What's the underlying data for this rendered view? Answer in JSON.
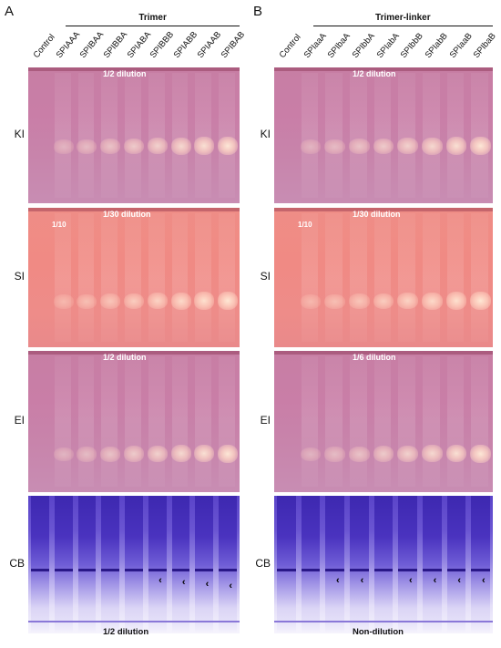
{
  "panels": [
    {
      "letter": "A",
      "group_title": "Trimer",
      "lanes": [
        "Control",
        "SPIAAA",
        "SPIBAA",
        "SPIBBA",
        "SPIABA",
        "SPIBBB",
        "SPIABB",
        "SPIAAB",
        "SPIBAB"
      ],
      "rows": [
        {
          "label": "KI",
          "dilution": "1/2 dilution",
          "note": ""
        },
        {
          "label": "SI",
          "dilution": "1/30 dilution",
          "note": "1/10"
        },
        {
          "label": "EI",
          "dilution": "1/2 dilution",
          "note": ""
        },
        {
          "label": "CB",
          "dilution": "1/2 dilution",
          "note": ""
        }
      ]
    },
    {
      "letter": "B",
      "group_title": "Trimer-linker",
      "lanes": [
        "Control",
        "SPIaaA",
        "SPIbaA",
        "SPIbbA",
        "SPIabA",
        "SPIbbB",
        "SPIabB",
        "SPIaaB",
        "SPIbaB"
      ],
      "rows": [
        {
          "label": "KI",
          "dilution": "1/2 dilution",
          "note": ""
        },
        {
          "label": "SI",
          "dilution": "1/30 dilution",
          "note": "1/10"
        },
        {
          "label": "EI",
          "dilution": "1/6 dilution",
          "note": ""
        },
        {
          "label": "CB",
          "dilution": "Non-dilution",
          "note": ""
        }
      ]
    }
  ],
  "arrow_glyph": "‹",
  "colors": {
    "ki_gel": "#c77ea4",
    "si_gel": "#ef8d86",
    "cb_gel": "#5a44c9"
  }
}
